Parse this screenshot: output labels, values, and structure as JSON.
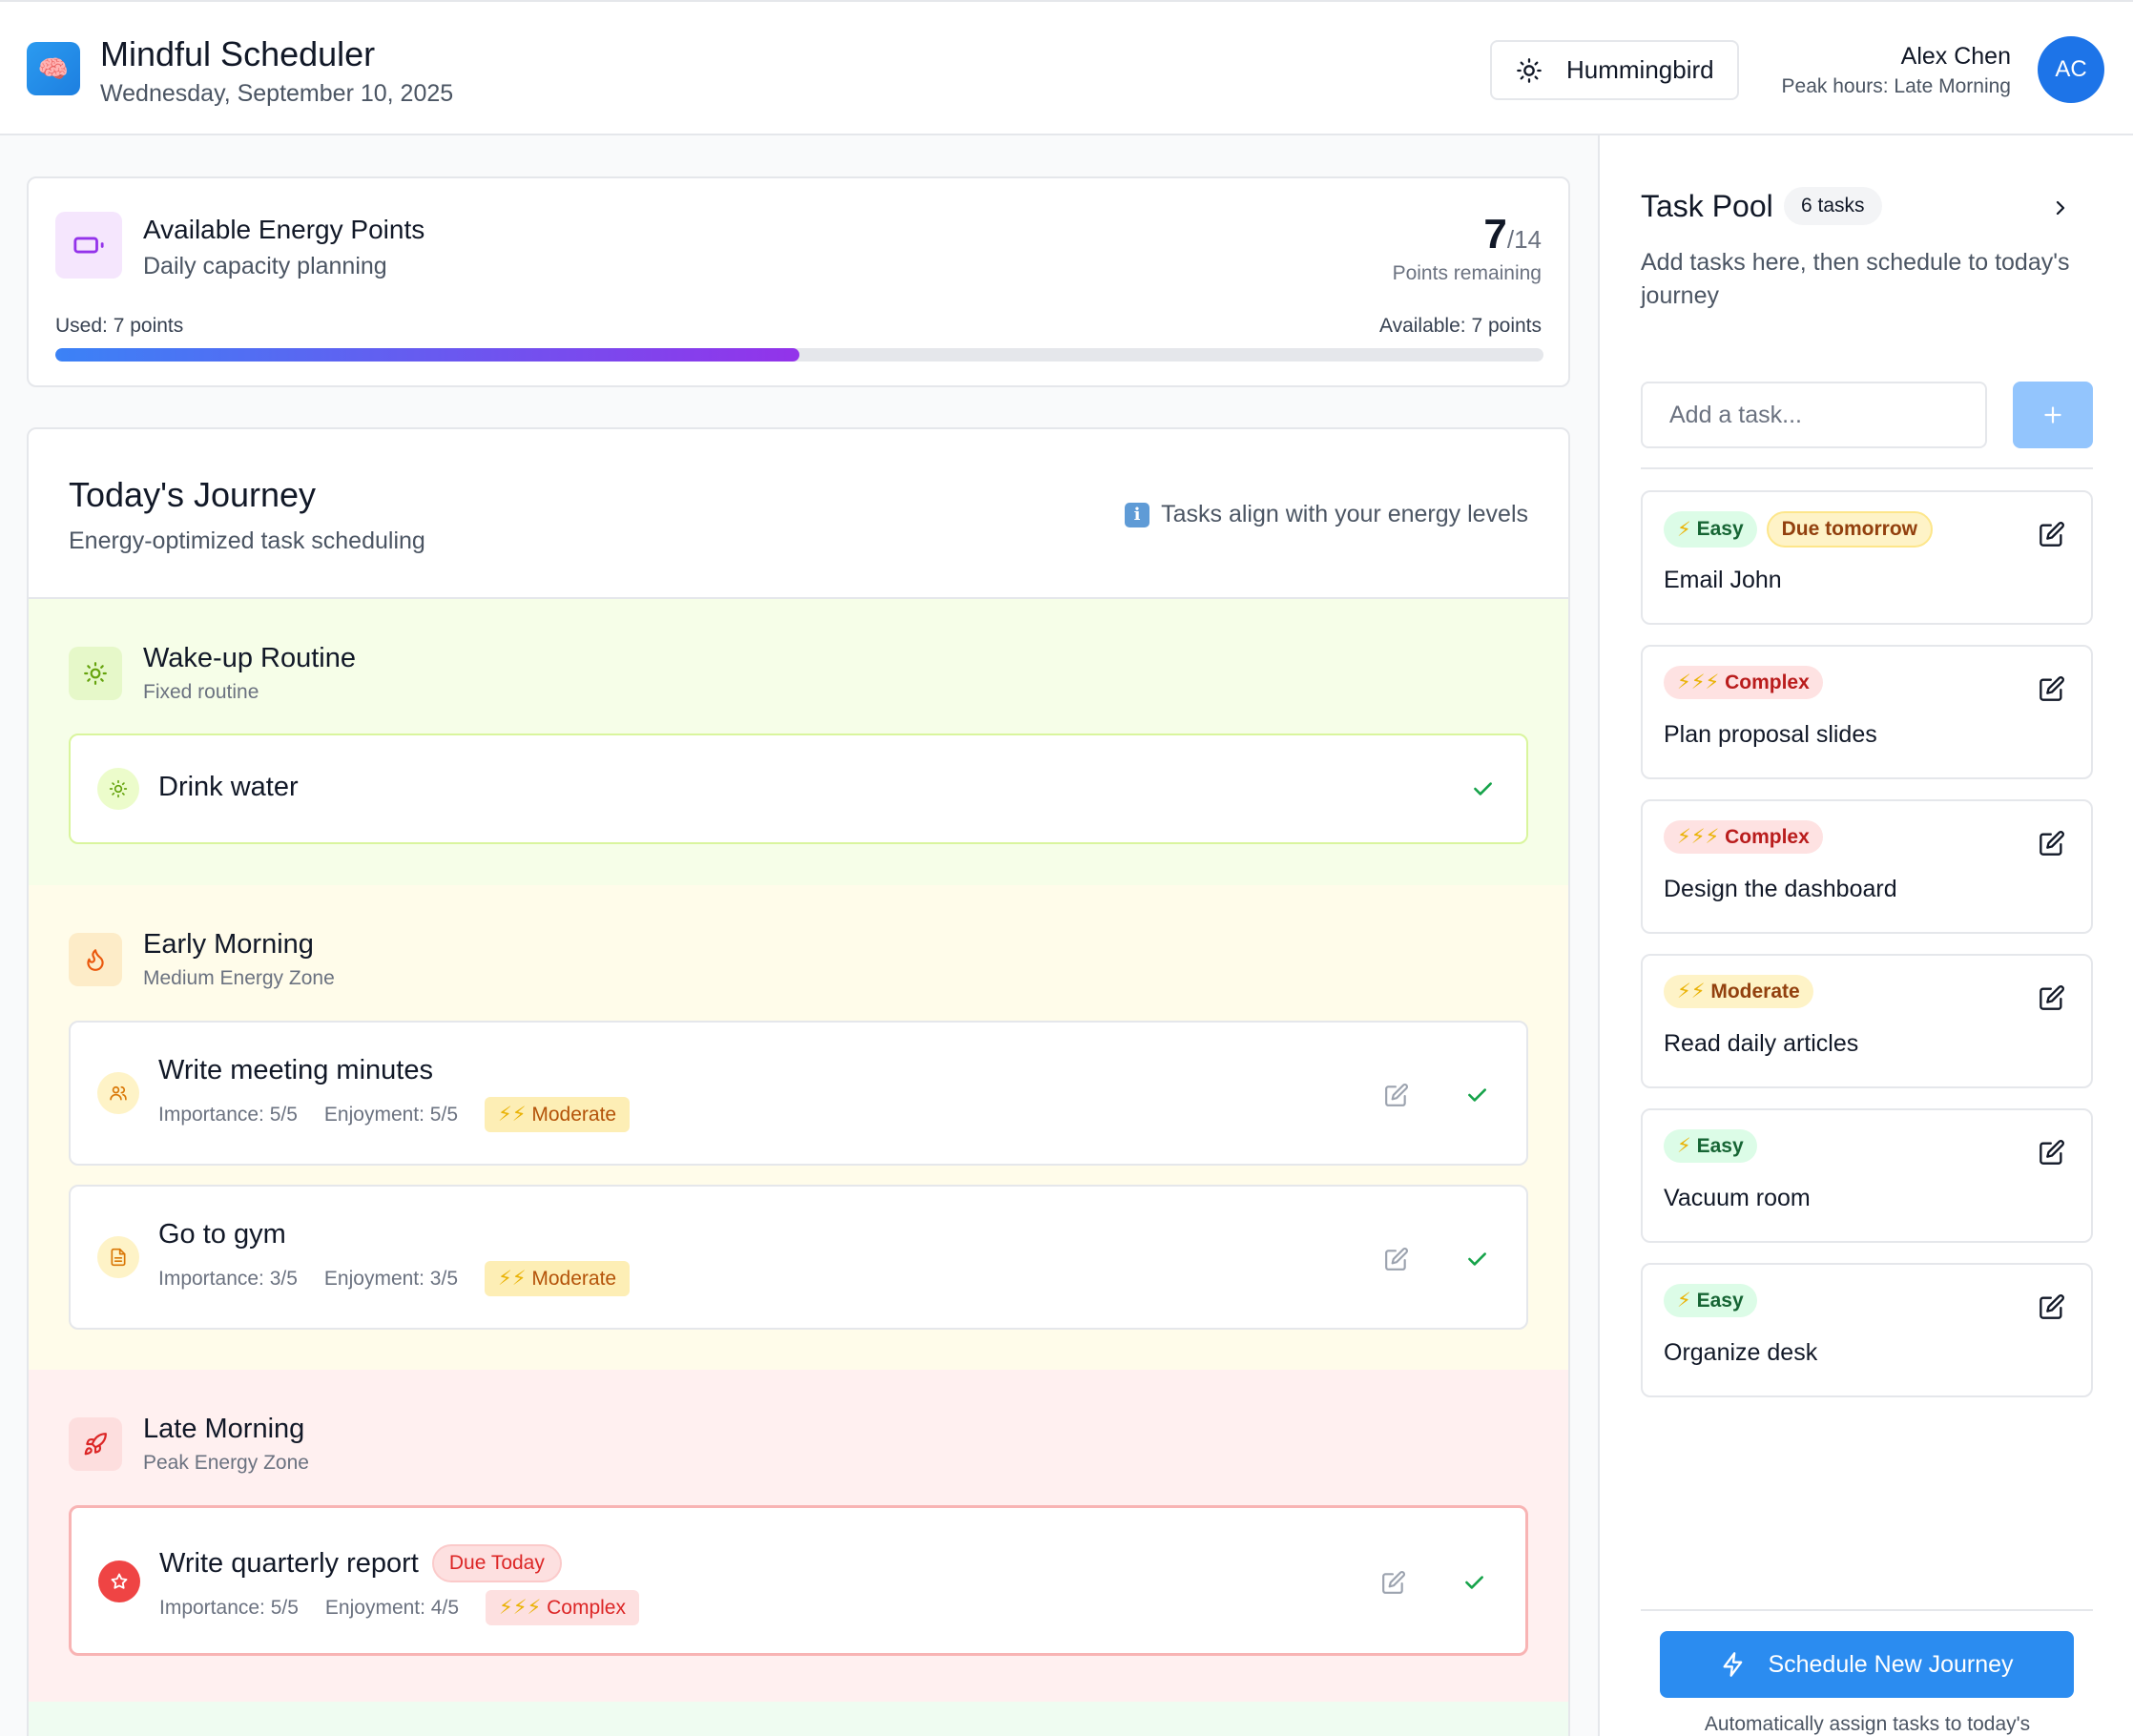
{
  "header": {
    "app_title": "Mindful Scheduler",
    "date": "Wednesday, September 10, 2025",
    "persona_label": "Hummingbird",
    "user_name": "Alex Chen",
    "peak_hours": "Peak hours: Late Morning",
    "avatar_initials": "AC"
  },
  "energy": {
    "title": "Available Energy Points",
    "subtitle": "Daily capacity planning",
    "remaining": "7",
    "total": "/14",
    "remaining_label": "Points remaining",
    "used_label": "Used: 7 points",
    "available_label": "Available: 7 points",
    "used_fraction": 0.5
  },
  "journey": {
    "title": "Today's Journey",
    "subtitle": "Energy-optimized task scheduling",
    "note": "Tasks align with your energy levels",
    "sections": [
      {
        "title": "Wake-up Routine",
        "subtitle": "Fixed routine",
        "tasks": [
          {
            "name": "Drink water"
          }
        ]
      },
      {
        "title": "Early Morning",
        "subtitle": "Medium Energy Zone",
        "tasks": [
          {
            "name": "Write meeting minutes",
            "importance": "Importance: 5/5",
            "enjoyment": "Enjoyment: 5/5",
            "level": "Moderate"
          },
          {
            "name": "Go to gym",
            "importance": "Importance: 3/5",
            "enjoyment": "Enjoyment: 3/5",
            "level": "Moderate"
          }
        ]
      },
      {
        "title": "Late Morning",
        "subtitle": "Peak Energy Zone",
        "tasks": [
          {
            "name": "Write quarterly report",
            "due": "Due Today",
            "importance": "Importance: 5/5",
            "enjoyment": "Enjoyment: 4/5",
            "level": "Complex"
          }
        ]
      }
    ]
  },
  "pool": {
    "title": "Task Pool",
    "count": "6 tasks",
    "description": "Add tasks here, then schedule to today's journey",
    "input_placeholder": "Add a task...",
    "items": [
      {
        "tag": "Easy",
        "due": "Due tomorrow",
        "title": "Email John"
      },
      {
        "tag": "Complex",
        "title": "Plan proposal slides"
      },
      {
        "tag": "Complex",
        "title": "Design the dashboard"
      },
      {
        "tag": "Moderate",
        "title": "Read daily articles"
      },
      {
        "tag": "Easy",
        "title": "Vacuum room"
      },
      {
        "tag": "Easy",
        "title": "Organize desk"
      }
    ],
    "schedule_button": "Schedule New Journey",
    "auto_note": "Automatically assign tasks to today's"
  },
  "colors": {
    "accent": "#2b8cf0",
    "progress_start": "#3b82f6",
    "progress_end": "#9333ea",
    "easy": "#166534",
    "moderate": "#b45309",
    "complex": "#dc2626"
  },
  "icons": [
    "brain-icon",
    "sun-icon",
    "battery-icon",
    "info-icon",
    "flame-icon",
    "rocket-icon",
    "users-icon",
    "document-icon",
    "star-icon",
    "edit-icon",
    "check-icon",
    "chevron-right-icon",
    "plus-icon",
    "lightning-icon"
  ]
}
